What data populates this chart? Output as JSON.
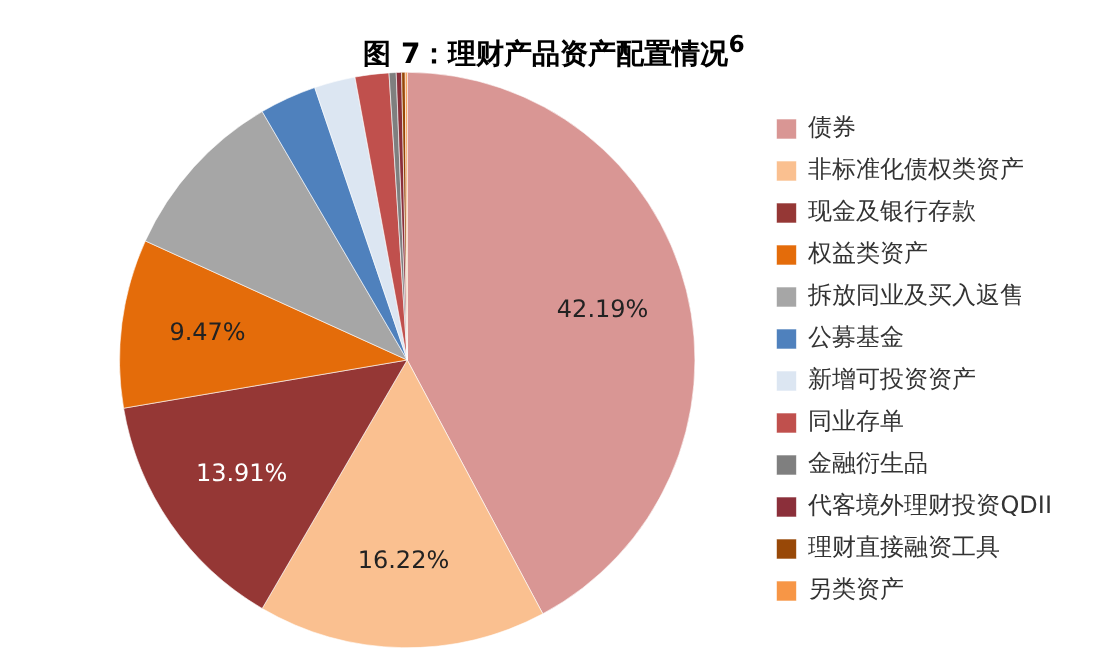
{
  "chart_data": {
    "type": "pie",
    "title": "图 7：理财产品资产配置情况$^{6}$",
    "categories": [
      "债券",
      "非标准化债权类资产",
      "现金及银行存款",
      "权益类资产",
      "拆放同业及买入返售",
      "公募基金",
      "新增可投资资产",
      "同业存单",
      "金融衍生品",
      "代客境外理财投资QDII",
      "理财直接融资工具",
      "另类资产"
    ],
    "values": [
      42.19,
      16.22,
      13.91,
      9.47,
      9.8,
      3.2,
      2.3,
      1.9,
      0.4,
      0.3,
      0.2,
      0.11
    ],
    "colors": [
      "#d99694",
      "#fac090",
      "#953735",
      "#e46c0a",
      "#a6a6a6",
      "#4f81bd",
      "#dce6f2",
      "#c0504d",
      "#7f7f7f",
      "#8b2f3a",
      "#984807",
      "#f79646"
    ],
    "value_labels": [
      "42.19%",
      "16.22%",
      "13.91%",
      "9.47%",
      null,
      null,
      null,
      null,
      null,
      null,
      null,
      null
    ],
    "legend": "right"
  }
}
